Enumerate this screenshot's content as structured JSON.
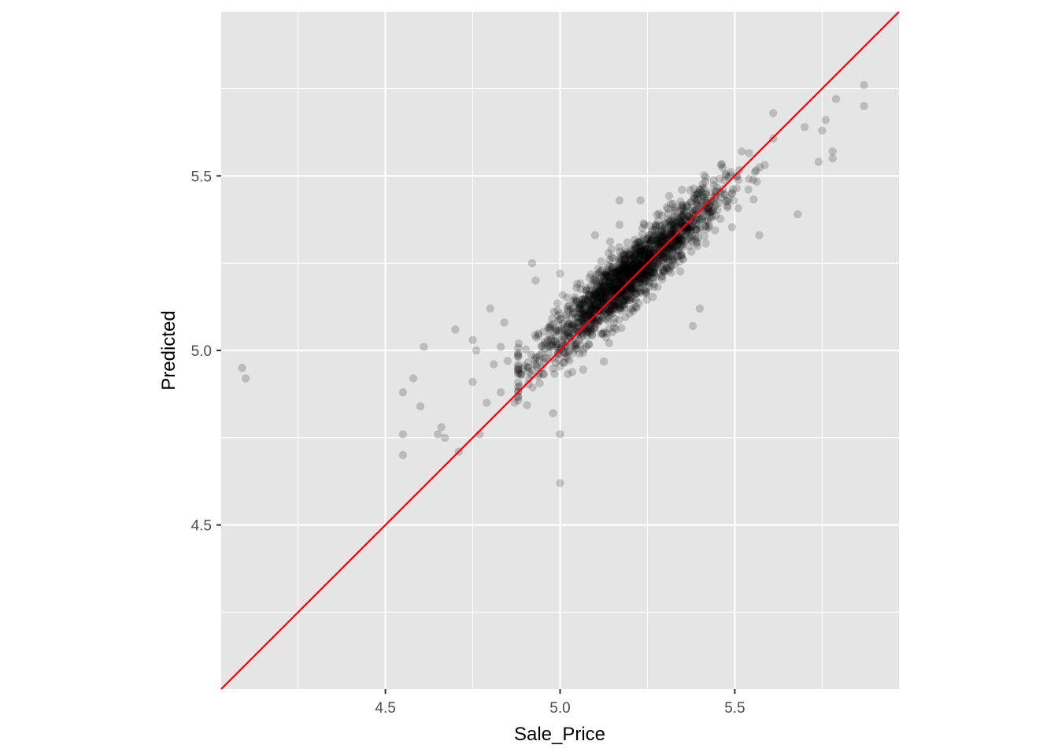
{
  "chart_data": {
    "type": "scatter",
    "title": "",
    "xlabel": "Sale_Price",
    "ylabel": "Predicted",
    "xlim": [
      4.03,
      5.97
    ],
    "ylim": [
      4.03,
      5.97
    ],
    "x_ticks": [
      4.5,
      5.0,
      5.5
    ],
    "x_tick_labels": [
      "4.5",
      "5.0",
      "5.5"
    ],
    "y_ticks": [
      4.5,
      5.0,
      5.5
    ],
    "y_tick_labels": [
      "4.5",
      "5.0",
      "5.5"
    ],
    "grid": true,
    "legend": "none",
    "reference_line": {
      "type": "identity",
      "slope": 1,
      "intercept": 0,
      "color": "#ff0000"
    },
    "colors": {
      "panel": "#e5e5e5",
      "grid": "#ffffff",
      "point": "#000000",
      "line": "#ff0000"
    },
    "point_alpha": 0.18,
    "outliers": [
      {
        "x": 4.09,
        "y": 4.95
      },
      {
        "x": 4.1,
        "y": 4.92
      },
      {
        "x": 4.55,
        "y": 4.88
      },
      {
        "x": 4.55,
        "y": 4.76
      },
      {
        "x": 4.55,
        "y": 4.7
      },
      {
        "x": 4.58,
        "y": 4.92
      },
      {
        "x": 4.6,
        "y": 4.84
      },
      {
        "x": 4.61,
        "y": 5.01
      },
      {
        "x": 4.65,
        "y": 4.76
      },
      {
        "x": 4.66,
        "y": 4.78
      },
      {
        "x": 4.67,
        "y": 4.75
      },
      {
        "x": 4.7,
        "y": 5.06
      },
      {
        "x": 4.71,
        "y": 4.71
      },
      {
        "x": 4.75,
        "y": 5.03
      },
      {
        "x": 4.75,
        "y": 4.91
      },
      {
        "x": 4.76,
        "y": 5.0
      },
      {
        "x": 4.77,
        "y": 4.76
      },
      {
        "x": 4.79,
        "y": 4.85
      },
      {
        "x": 4.8,
        "y": 5.12
      },
      {
        "x": 4.81,
        "y": 4.96
      },
      {
        "x": 4.83,
        "y": 4.88
      },
      {
        "x": 4.83,
        "y": 5.01
      },
      {
        "x": 4.84,
        "y": 5.08
      },
      {
        "x": 4.85,
        "y": 4.97
      },
      {
        "x": 4.87,
        "y": 4.85
      },
      {
        "x": 4.92,
        "y": 5.25
      },
      {
        "x": 4.93,
        "y": 5.2
      },
      {
        "x": 4.98,
        "y": 4.82
      },
      {
        "x": 5.0,
        "y": 4.76
      },
      {
        "x": 5.0,
        "y": 4.62
      },
      {
        "x": 5.0,
        "y": 5.22
      },
      {
        "x": 5.1,
        "y": 5.33
      },
      {
        "x": 5.17,
        "y": 5.43
      },
      {
        "x": 5.23,
        "y": 5.43
      },
      {
        "x": 5.17,
        "y": 5.36
      },
      {
        "x": 5.38,
        "y": 5.07
      },
      {
        "x": 5.4,
        "y": 5.12
      },
      {
        "x": 5.52,
        "y": 5.57
      },
      {
        "x": 5.57,
        "y": 5.33
      },
      {
        "x": 5.61,
        "y": 5.68
      },
      {
        "x": 5.68,
        "y": 5.39
      },
      {
        "x": 5.74,
        "y": 5.54
      },
      {
        "x": 5.75,
        "y": 5.63
      },
      {
        "x": 5.78,
        "y": 5.55
      },
      {
        "x": 5.78,
        "y": 5.57
      },
      {
        "x": 5.79,
        "y": 5.72
      },
      {
        "x": 5.87,
        "y": 5.76
      },
      {
        "x": 5.87,
        "y": 5.7
      },
      {
        "x": 5.76,
        "y": 5.66
      },
      {
        "x": 5.7,
        "y": 5.64
      }
    ],
    "bulk_distribution": {
      "n_points": 1700,
      "x_mean": 5.2,
      "x_sd": 0.13,
      "y_intercept": 0.69,
      "y_slope": 0.87,
      "y_residual_sd": 0.045
    }
  }
}
